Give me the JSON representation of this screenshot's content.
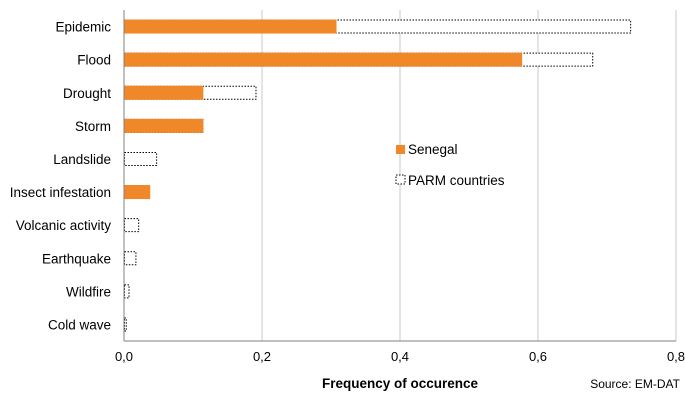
{
  "chart_data": {
    "type": "bar",
    "orientation": "horizontal",
    "categories": [
      "Epidemic",
      "Flood",
      "Drought",
      "Storm",
      "Landslide",
      "Insect infestation",
      "Volcanic activity",
      "Earthquake",
      "Wildfire",
      "Cold wave"
    ],
    "series": [
      {
        "name": "Senegal",
        "values": [
          0.308,
          0.577,
          0.115,
          0.115,
          0,
          0.038,
          0,
          0,
          0,
          0
        ],
        "color": "#F0882A",
        "style": "solid"
      },
      {
        "name": "PARM countries",
        "values": [
          0.735,
          0.68,
          0.192,
          0.115,
          0.048,
          0.028,
          0.022,
          0.018,
          0.008,
          0.004
        ],
        "color": "#000000",
        "style": "dotted-outline"
      }
    ],
    "xlabel": "Frequency of occurence",
    "xlim": [
      0,
      0.8
    ],
    "xticks": [
      "0,0",
      "0,2",
      "0,4",
      "0,6",
      "0,8"
    ],
    "grid": "vertical",
    "legend_position": "right-center",
    "annotation": "Source: EM-DAT"
  }
}
